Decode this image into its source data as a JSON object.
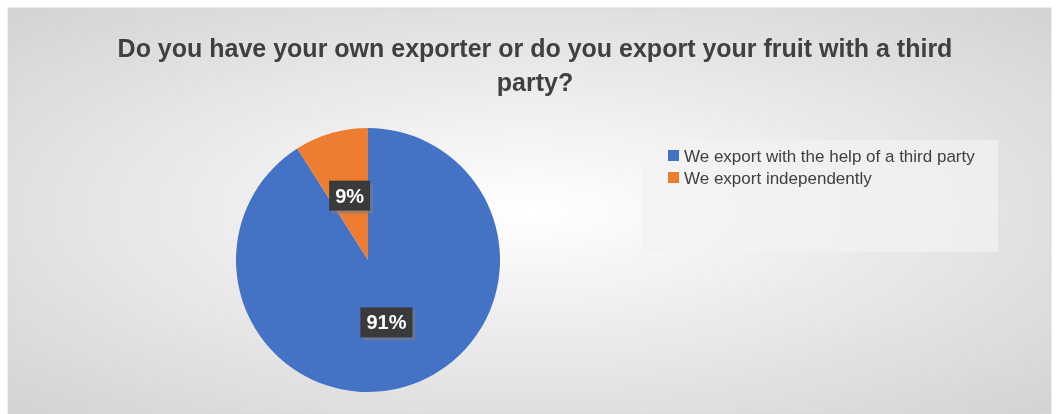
{
  "chart_data": {
    "type": "pie",
    "title": "Do you have your own exporter or do you export your fruit with a third party?",
    "categories": [
      "We export with the help of a third party",
      "We export independently"
    ],
    "values": [
      91,
      9
    ],
    "colors": [
      "#4472c4",
      "#ed7d31"
    ],
    "value_labels": [
      "91%",
      "9%"
    ],
    "legend": "right"
  }
}
